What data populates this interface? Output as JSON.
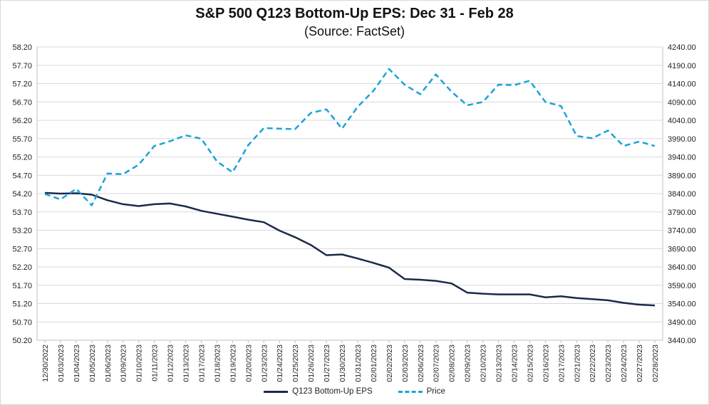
{
  "chart_data": {
    "type": "line",
    "title": "S&P 500 Q123 Bottom-Up EPS: Dec 31 - Feb 28",
    "subtitle": "(Source: FactSet)",
    "x": [
      "12/30/2022",
      "01/03/2023",
      "01/04/2023",
      "01/05/2023",
      "01/06/2023",
      "01/09/2023",
      "01/10/2023",
      "01/11/2023",
      "01/12/2023",
      "01/13/2023",
      "01/17/2023",
      "01/18/2023",
      "01/19/2023",
      "01/20/2023",
      "01/23/2023",
      "01/24/2023",
      "01/25/2023",
      "01/26/2023",
      "01/27/2023",
      "01/30/2023",
      "01/31/2023",
      "02/01/2023",
      "02/02/2023",
      "02/03/2023",
      "02/06/2023",
      "02/07/2023",
      "02/08/2023",
      "02/09/2023",
      "02/10/2023",
      "02/13/2023",
      "02/14/2023",
      "02/15/2023",
      "02/16/2023",
      "02/17/2023",
      "02/21/2023",
      "02/22/2023",
      "02/23/2023",
      "02/24/2023",
      "02/27/2023",
      "02/28/2023"
    ],
    "y_left": {
      "ylim": [
        50.2,
        58.2
      ],
      "ticks": [
        "58.20",
        "57.70",
        "57.20",
        "56.70",
        "56.20",
        "55.70",
        "55.20",
        "54.70",
        "54.20",
        "53.70",
        "53.20",
        "52.70",
        "52.20",
        "51.70",
        "51.20",
        "50.70",
        "50.20"
      ]
    },
    "y_right": {
      "ylim": [
        3440,
        4240
      ],
      "ticks": [
        "4240.00",
        "4190.00",
        "4140.00",
        "4090.00",
        "4040.00",
        "3990.00",
        "3940.00",
        "3890.00",
        "3840.00",
        "3790.00",
        "3740.00",
        "3690.00",
        "3640.00",
        "3590.00",
        "3540.00",
        "3490.00",
        "3440.00"
      ]
    },
    "series": [
      {
        "name": "Q123 Bottom-Up EPS",
        "axis": "left",
        "color": "#1b2a4a",
        "style": "solid",
        "values": [
          54.22,
          54.2,
          54.21,
          54.17,
          54.02,
          53.91,
          53.86,
          53.91,
          53.93,
          53.85,
          53.73,
          53.65,
          53.57,
          53.49,
          53.42,
          53.19,
          53.01,
          52.8,
          52.52,
          52.54,
          52.43,
          52.31,
          52.18,
          51.87,
          51.85,
          51.82,
          51.75,
          51.5,
          51.47,
          51.45,
          51.45,
          51.45,
          51.37,
          51.4,
          51.35,
          51.32,
          51.29,
          51.22,
          51.17,
          51.15
        ]
      },
      {
        "name": "Price",
        "axis": "right",
        "color": "#1aa3d9",
        "style": "dashed",
        "values": [
          3839,
          3824,
          3853,
          3808,
          3895,
          3893,
          3919,
          3970,
          3983,
          3999,
          3990,
          3928,
          3898,
          3972,
          4019,
          4017,
          4016,
          4060,
          4070,
          4017,
          4077,
          4120,
          4180,
          4137,
          4111,
          4165,
          4118,
          4081,
          4090,
          4137,
          4136,
          4148,
          4090,
          4079,
          3997,
          3991,
          4012,
          3970,
          3982,
          3970
        ]
      }
    ],
    "grid": true,
    "legend": "bottom"
  }
}
